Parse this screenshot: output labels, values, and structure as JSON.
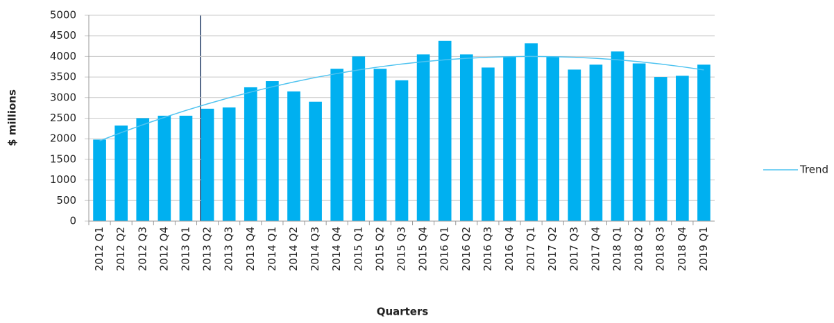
{
  "chart_data": {
    "type": "bar",
    "categories": [
      "2012 Q1",
      "2012 Q2",
      "2012 Q3",
      "2012 Q4",
      "2013 Q1",
      "2013 Q2",
      "2013 Q3",
      "2013 Q4",
      "2014 Q1",
      "2014 Q2",
      "2014 Q3",
      "2014 Q4",
      "2015 Q1",
      "2015 Q2",
      "2015 Q3",
      "2015 Q4",
      "2016 Q1",
      "2016 Q2",
      "2016 Q3",
      "2016 Q4",
      "2017 Q1",
      "2017 Q2",
      "2017 Q3",
      "2017 Q4",
      "2018 Q1",
      "2018 Q2",
      "2018 Q3",
      "2018 Q4",
      "2019 Q1"
    ],
    "series": [
      {
        "type": "bar",
        "color": "#00b0f0",
        "values": [
          1980,
          2320,
          2500,
          2560,
          2560,
          2730,
          2760,
          3250,
          3400,
          3150,
          2900,
          3700,
          4000,
          3700,
          3420,
          4050,
          4380,
          4050,
          3730,
          4000,
          4320,
          4000,
          3680,
          3800,
          4120,
          3830,
          3500,
          3530,
          3800
        ]
      },
      {
        "type": "line",
        "name": "Trend",
        "color": "#4fc3f0",
        "values": [
          1950,
          2150,
          2340,
          2519,
          2688,
          2847,
          2996,
          3134,
          3262,
          3380,
          3488,
          3585,
          3672,
          3749,
          3816,
          3872,
          3918,
          3954,
          3980,
          3995,
          4000,
          3995,
          3980,
          3954,
          3918,
          3872,
          3816,
          3749,
          3672
        ]
      }
    ],
    "y_label": "$ millions",
    "x_label": "Quarters",
    "ylim": [
      0,
      5000
    ],
    "yticks": [
      0,
      500,
      1000,
      1500,
      2000,
      2500,
      3000,
      3500,
      4000,
      4500,
      5000
    ],
    "grid": true,
    "legend": "right"
  }
}
